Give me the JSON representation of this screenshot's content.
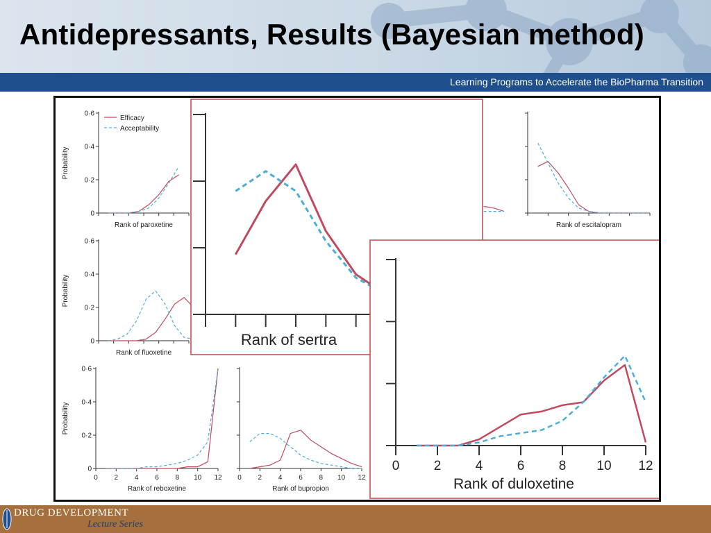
{
  "slide": {
    "title": "Antidepressants, Results (Bayesian method)",
    "subtitle": "Learning Programs to Accelerate the BioPharma Transition",
    "footer_logo": {
      "main": "DRUG DEVELOPMENT",
      "sub": "Lecture Series"
    }
  },
  "colors": {
    "efficacy": "#c04a5e",
    "acceptability": "#4aaed6",
    "title_bar": "#1f4f8c",
    "footer": "#a5703d"
  },
  "legend": {
    "efficacy": "Efficacy",
    "acceptability": "Acceptability"
  },
  "chart_data": [
    {
      "id": "paroxetine",
      "type": "line",
      "xlabel": "Rank of paroxetine",
      "ylabel": "Probability",
      "yticks": [
        "0·6",
        "0·4",
        "0·2",
        "0"
      ],
      "xticks": [],
      "ylim": [
        0,
        0.6
      ],
      "series": [
        {
          "name": "Efficacy",
          "x": [
            1,
            2,
            3,
            4,
            5,
            6,
            7,
            8
          ],
          "values": [
            0,
            0,
            0,
            0.01,
            0.05,
            0.11,
            0.19,
            0.23
          ]
        },
        {
          "name": "Acceptability",
          "x": [
            1,
            2,
            3,
            4,
            5,
            6,
            7,
            8
          ],
          "values": [
            0,
            0,
            0,
            0.01,
            0.03,
            0.09,
            0.18,
            0.28
          ]
        }
      ]
    },
    {
      "id": "fluoxetine",
      "type": "line",
      "xlabel": "Rank of fluoxetine",
      "ylabel": "Probability",
      "yticks": [
        "0·6",
        "0·4",
        "0·2",
        "0"
      ],
      "xticks": [],
      "ylim": [
        0,
        0.6
      ],
      "series": [
        {
          "name": "Efficacy",
          "x": [
            1,
            2,
            3,
            4,
            5,
            6,
            7,
            8,
            9,
            10
          ],
          "values": [
            0,
            0,
            0,
            0,
            0.01,
            0.05,
            0.13,
            0.22,
            0.26,
            0.2
          ]
        },
        {
          "name": "Acceptability",
          "x": [
            1,
            2,
            3,
            4,
            5,
            6,
            7,
            8,
            9,
            10
          ],
          "values": [
            0,
            0.01,
            0.04,
            0.12,
            0.25,
            0.3,
            0.22,
            0.09,
            0.02,
            0.01
          ]
        }
      ]
    },
    {
      "id": "reboxetine",
      "type": "line",
      "xlabel": "Rank of reboxetine",
      "ylabel": "Probability",
      "yticks": [
        "0·6",
        "0·4",
        "0·2",
        "0"
      ],
      "xticks": [
        "0",
        "2",
        "4",
        "6",
        "8",
        "10",
        "12"
      ],
      "xlim": [
        0,
        12
      ],
      "ylim": [
        0,
        0.6
      ],
      "series": [
        {
          "name": "Efficacy",
          "x": [
            1,
            2,
            3,
            4,
            5,
            6,
            7,
            8,
            9,
            10,
            11,
            12
          ],
          "values": [
            0,
            0,
            0,
            0,
            0,
            0,
            0,
            0,
            0.01,
            0.01,
            0.04,
            0.6
          ]
        },
        {
          "name": "Acceptability",
          "x": [
            1,
            2,
            3,
            4,
            5,
            6,
            7,
            8,
            9,
            10,
            11,
            12
          ],
          "values": [
            0,
            0,
            0,
            0,
            0.01,
            0.01,
            0.02,
            0.03,
            0.05,
            0.08,
            0.16,
            0.6
          ]
        }
      ]
    },
    {
      "id": "bupropion",
      "type": "line",
      "xlabel": "Rank of bupropion",
      "ylabel": "",
      "yticks": [],
      "xticks": [
        "0",
        "2",
        "4",
        "6",
        "8",
        "10",
        "12"
      ],
      "xlim": [
        0,
        12
      ],
      "ylim": [
        0,
        0.6
      ],
      "series": [
        {
          "name": "Efficacy",
          "x": [
            1,
            2,
            3,
            4,
            5,
            6,
            7,
            8,
            9,
            10,
            11,
            12
          ],
          "values": [
            0,
            0.01,
            0.02,
            0.05,
            0.21,
            0.23,
            0.17,
            0.13,
            0.09,
            0.06,
            0.03,
            0.01
          ]
        },
        {
          "name": "Acceptability",
          "x": [
            1,
            2,
            3,
            4,
            5,
            6,
            7,
            8,
            9,
            10,
            11,
            12
          ],
          "values": [
            0.16,
            0.21,
            0.21,
            0.18,
            0.13,
            0.08,
            0.05,
            0.03,
            0.02,
            0.01,
            0,
            0
          ]
        }
      ]
    },
    {
      "id": "escitalopram",
      "type": "line",
      "xlabel": "Rank of escitalopram",
      "ylabel": "",
      "yticks": [],
      "xticks": [],
      "xlim": [
        0,
        12
      ],
      "ylim": [
        0,
        0.6
      ],
      "series": [
        {
          "name": "Efficacy",
          "x": [
            1,
            2,
            3,
            4,
            5,
            6,
            7,
            8,
            9,
            10,
            11,
            12
          ],
          "values": [
            0.28,
            0.31,
            0.24,
            0.15,
            0.05,
            0.01,
            0,
            0,
            0,
            0,
            0,
            0
          ]
        },
        {
          "name": "Acceptability",
          "x": [
            1,
            2,
            3,
            4,
            5,
            6,
            7,
            8,
            9,
            10,
            11,
            12
          ],
          "values": [
            0.42,
            0.3,
            0.18,
            0.09,
            0.03,
            0.01,
            0,
            0,
            0,
            0,
            0,
            0
          ]
        }
      ]
    },
    {
      "id": "fluvoxamine-partial",
      "type": "line",
      "xlabel": "",
      "ylabel": "",
      "yticks": [],
      "xticks": [],
      "xlim": [
        0,
        12
      ],
      "ylim": [
        0,
        0.6
      ],
      "series": [
        {
          "name": "Efficacy",
          "x": [
            10,
            11,
            12
          ],
          "values": [
            0.04,
            0.03,
            0.01
          ]
        },
        {
          "name": "Acceptability",
          "x": [
            10,
            11,
            12
          ],
          "values": [
            0.01,
            0.01,
            0.01
          ]
        }
      ]
    },
    {
      "id": "sertraline-zoom",
      "type": "line",
      "xlabel": "Rank of sertra",
      "ylabel": "",
      "yticks": [],
      "xticks": [],
      "xlim": [
        0,
        6
      ],
      "ylim": [
        0,
        0.6
      ],
      "series": [
        {
          "name": "Efficacy",
          "x": [
            1,
            2,
            3,
            4,
            5,
            6
          ],
          "values": [
            0.18,
            0.34,
            0.45,
            0.25,
            0.12,
            0.06
          ]
        },
        {
          "name": "Acceptability",
          "x": [
            1,
            2,
            3,
            4,
            5,
            6
          ],
          "values": [
            0.37,
            0.43,
            0.37,
            0.22,
            0.11,
            0.06
          ]
        }
      ]
    },
    {
      "id": "duloxetine-zoom",
      "type": "line",
      "xlabel": "Rank of duloxetine",
      "ylabel": "",
      "yticks": [],
      "xticks": [
        "0",
        "2",
        "4",
        "6",
        "8",
        "10",
        "12"
      ],
      "xlim": [
        0,
        12
      ],
      "ylim": [
        0,
        0.6
      ],
      "series": [
        {
          "name": "Efficacy",
          "x": [
            1,
            2,
            3,
            4,
            5,
            6,
            7,
            8,
            9,
            10,
            11,
            12
          ],
          "values": [
            0,
            0,
            0,
            0.02,
            0.06,
            0.1,
            0.11,
            0.13,
            0.14,
            0.21,
            0.26,
            0.01
          ]
        },
        {
          "name": "Acceptability",
          "x": [
            1,
            2,
            3,
            4,
            5,
            6,
            7,
            8,
            9,
            10,
            11,
            12
          ],
          "values": [
            0,
            0,
            0,
            0.01,
            0.03,
            0.04,
            0.05,
            0.08,
            0.14,
            0.22,
            0.29,
            0.14
          ]
        }
      ]
    }
  ]
}
